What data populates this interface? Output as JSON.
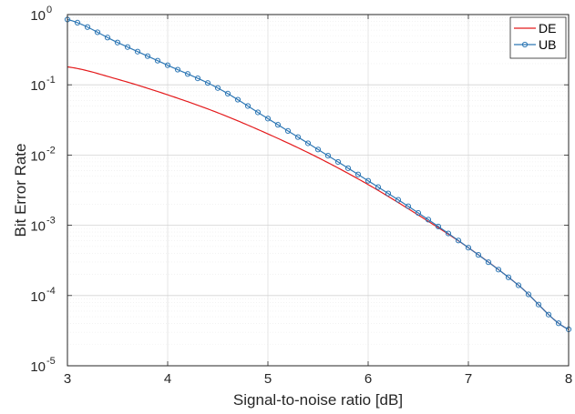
{
  "chart_data": {
    "type": "line",
    "xlabel": "Signal-to-noise ratio [dB]",
    "ylabel": "Bit Error Rate",
    "xlim": [
      3,
      8
    ],
    "ylim": [
      1e-05,
      1
    ],
    "yscale": "log",
    "grid": true,
    "minor_grid": true,
    "legend_position": "top-right",
    "x_ticks": [
      "3",
      "4",
      "5",
      "6",
      "7",
      "8"
    ],
    "y_ticks": [
      {
        "base": "10",
        "exp": "-5"
      },
      {
        "base": "10",
        "exp": "-4"
      },
      {
        "base": "10",
        "exp": "-3"
      },
      {
        "base": "10",
        "exp": "-2"
      },
      {
        "base": "10",
        "exp": "-1"
      },
      {
        "base": "10",
        "exp": "0"
      }
    ],
    "series": [
      {
        "name": "DE",
        "color": "#e41a1c",
        "marker": "none",
        "x": [
          3.0,
          3.5,
          4.0,
          4.5,
          5.0,
          5.5,
          6.0,
          6.5,
          7.0,
          7.5,
          8.0
        ],
        "y": [
          0.18,
          0.12,
          0.072,
          0.04,
          0.02,
          0.0092,
          0.0038,
          0.0014,
          0.00048,
          0.00014,
          3.3e-05
        ]
      },
      {
        "name": "UB",
        "color": "#2f78b5",
        "marker": "circle",
        "x": [
          3.0,
          3.5,
          4.0,
          4.5,
          5.0,
          5.5,
          6.0,
          6.5,
          7.0,
          7.5,
          8.0
        ],
        "y": [
          0.85,
          0.4,
          0.19,
          0.09,
          0.033,
          0.012,
          0.0043,
          0.0015,
          0.00048,
          0.00014,
          3.3e-05
        ]
      }
    ]
  }
}
